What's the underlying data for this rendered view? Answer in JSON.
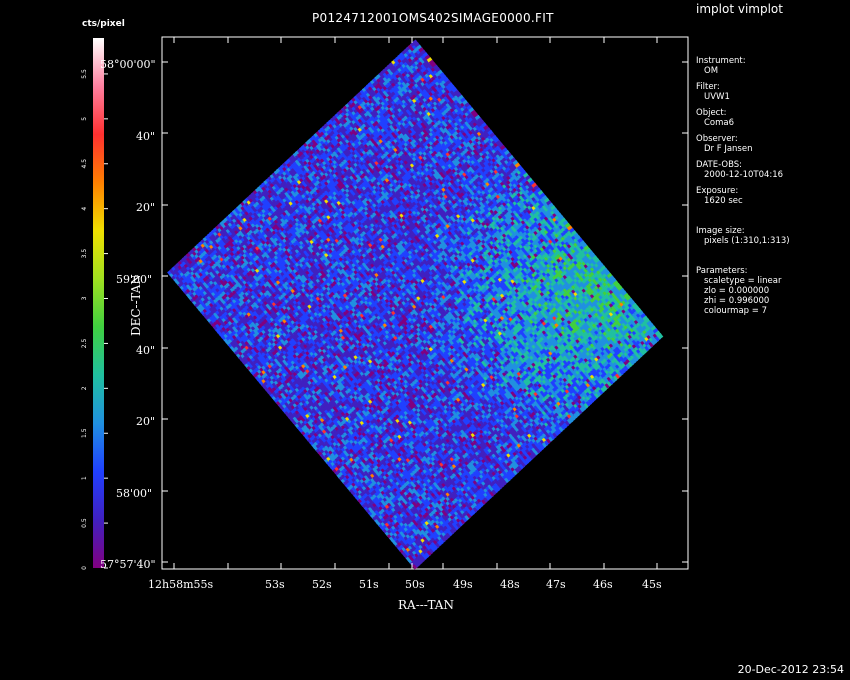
{
  "title": "P0124712001OMS402SIMAGE0000.FIT",
  "app": "implot vimplot",
  "timestamp": "20-Dec-2012 23:54",
  "colorbar": {
    "unit": "cts/pixel",
    "ticks": [
      "0",
      "0.5",
      "1",
      "1.5",
      "2",
      "2.5",
      "3",
      "3.5",
      "4",
      "4.5",
      "5",
      "5.5"
    ],
    "colormap": [
      "#800080",
      "#4020c0",
      "#2040ff",
      "#2090e0",
      "#20c0a0",
      "#40d040",
      "#a0e020",
      "#f0e000",
      "#ff8000",
      "#ff3030",
      "#ff80a0",
      "#ffffff"
    ]
  },
  "axes": {
    "xlabel": "RA---TAN",
    "ylabel": "DEC--TAN",
    "xticks": [
      "12h58m55s",
      "53s",
      "52s",
      "51s",
      "50s",
      "49s",
      "48s",
      "47s",
      "46s",
      "45s"
    ],
    "yticks": [
      "57°57'40\"",
      "58'00\"",
      "20\"",
      "40\"",
      "59'00\"",
      "20\"",
      "40\"",
      "58°00'00\""
    ]
  },
  "info": {
    "instrument_label": "Instrument:",
    "instrument": "OM",
    "filter_label": "Filter:",
    "filter": "UVW1",
    "object_label": "Object:",
    "object": "Coma6",
    "observer_label": "Observer:",
    "observer": "Dr F Jansen",
    "date_label": "DATE-OBS:",
    "date": "2000-12-10T04:16",
    "exposure_label": "Exposure:",
    "exposure": "1620 sec",
    "size_label": "Image size:",
    "size": "pixels (1:310,1:313)",
    "params_label": "Parameters:",
    "scaletype": "scaletype = linear",
    "zlo": "zlo = 0.000000",
    "zhi": "zhi = 0.996000",
    "colourmap": "colourmap =    7"
  }
}
